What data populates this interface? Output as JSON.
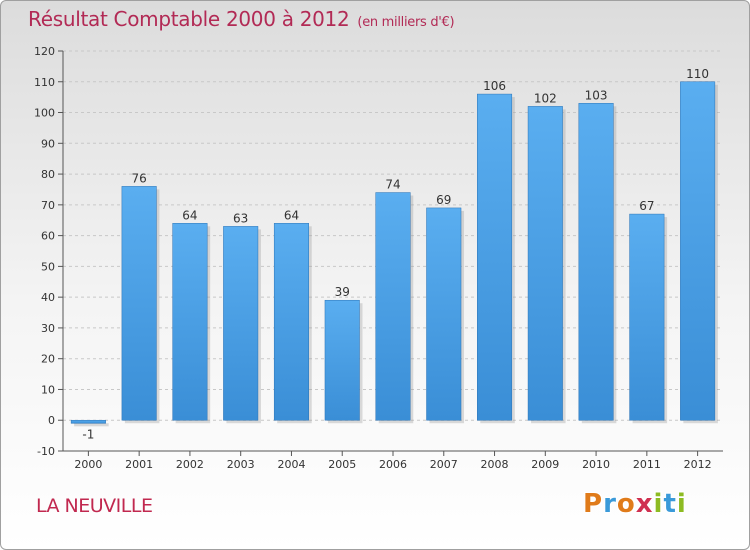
{
  "header": {
    "title": "Résultat Comptable 2000 à 2012",
    "unit": "(en milliers d'€)"
  },
  "footer": {
    "city": "LA NEUVILLE",
    "logo": [
      "P",
      "r",
      "o",
      "x",
      "i",
      "t",
      "i"
    ]
  },
  "colors": {
    "bar": "#3a8ed6",
    "bar_light": "#5aaef0",
    "title": "#b22a55",
    "logo": [
      "#e07b1a",
      "#3a9ad9",
      "#e07b1a",
      "#d03050",
      "#8dbb22",
      "#3a9ad9",
      "#8dbb22"
    ]
  },
  "chart_data": {
    "type": "bar",
    "title": "Résultat Comptable 2000 à 2012",
    "subtitle": "(en milliers d'€)",
    "xlabel": "",
    "ylabel": "",
    "categories": [
      "2000",
      "2001",
      "2002",
      "2003",
      "2004",
      "2005",
      "2006",
      "2007",
      "2008",
      "2009",
      "2010",
      "2011",
      "2012"
    ],
    "values": [
      -1,
      76,
      64,
      63,
      64,
      39,
      74,
      69,
      106,
      102,
      103,
      67,
      110
    ],
    "ylim": [
      -10,
      120
    ],
    "yticks": [
      -10,
      0,
      10,
      20,
      30,
      40,
      50,
      60,
      70,
      80,
      90,
      100,
      110,
      120
    ],
    "grid": true
  }
}
